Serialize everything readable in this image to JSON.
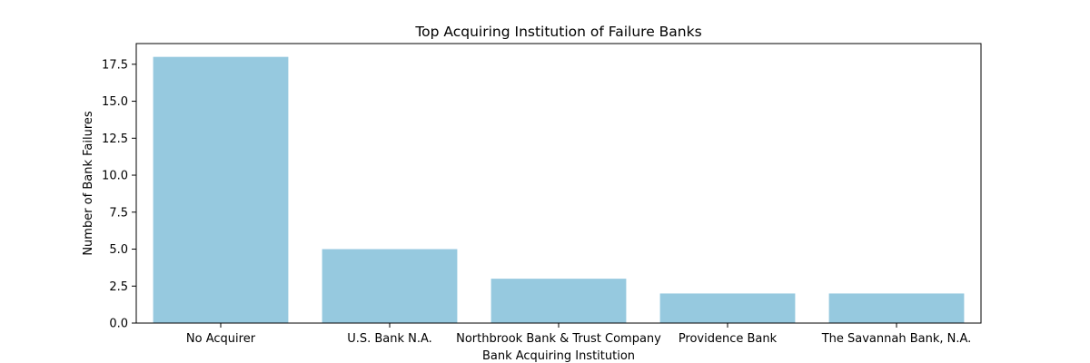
{
  "chart_data": {
    "type": "bar",
    "title": "Top Acquiring Institution of Failure Banks",
    "xlabel": "Bank Acquiring Institution",
    "ylabel": "Number of Bank Failures",
    "categories": [
      "No Acquirer",
      "U.S. Bank N.A.",
      "Northbrook Bank & Trust Company",
      "Providence Bank",
      "The Savannah Bank, N.A."
    ],
    "values": [
      18,
      5,
      3,
      2,
      2
    ],
    "ylim": [
      0,
      18.9
    ],
    "yticks": [
      0,
      2.5,
      5,
      7.5,
      10,
      12.5,
      15,
      17.5
    ],
    "ytick_labels": [
      "0.0",
      "2.5",
      "5.0",
      "7.5",
      "10.0",
      "12.5",
      "15.0",
      "17.5"
    ],
    "bar_color": "#96c9df",
    "grid": false,
    "legend": "none"
  }
}
